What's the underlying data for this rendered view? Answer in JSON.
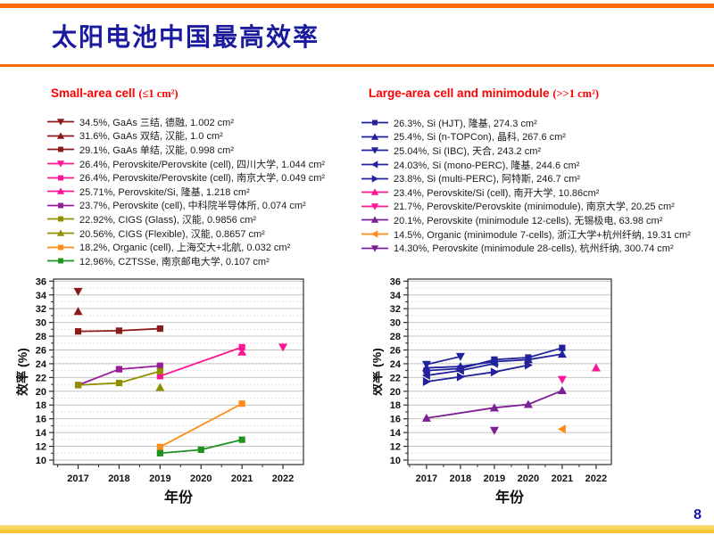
{
  "slide": {
    "title": "太阳电池中国最高效率",
    "page_number": "8"
  },
  "accent_colors": {
    "top_bar_orange": "#FF6A00",
    "bottom_bar_gold": "#F2C02A",
    "title_blue": "#1B1B9E",
    "legend_header_red": "#FF0000"
  },
  "panels": {
    "small": {
      "header": "Small-area cell",
      "size_note": "(≤1 cm²)",
      "items": [
        {
          "marker": "triangle-down",
          "color": "#8B1A1A",
          "text": "34.5%, GaAs 三结, 德融, 1.002 cm²"
        },
        {
          "marker": "triangle-up",
          "color": "#8B1A1A",
          "text": "31.6%, GaAs 双结, 汉能, 1.0 cm²"
        },
        {
          "marker": "square",
          "color": "#8B1A1A",
          "text": "29.1%, GaAs 单结, 汉能, 0.998 cm²"
        },
        {
          "marker": "triangle-down",
          "color": "#FF1493",
          "text": "26.4%, Perovskite/Perovskite (cell), 四川大学, 1.044 cm²"
        },
        {
          "marker": "square",
          "color": "#FF1493",
          "text": "26.4%, Perovskite/Perovskite (cell), 南京大学, 0.049 cm²"
        },
        {
          "marker": "triangle-up",
          "color": "#FF1493",
          "text": "25.71%, Perovskite/Si, 隆基, 1.218 cm²"
        },
        {
          "marker": "square",
          "color": "#9A1B9E",
          "text": "23.7%, Perovskite (cell), 中科院半导体所, 0.074 cm²"
        },
        {
          "marker": "square",
          "color": "#8F8F00",
          "text": "22.92%, CIGS (Glass), 汉能, 0.9856 cm²"
        },
        {
          "marker": "triangle-up",
          "color": "#8F8F00",
          "text": "20.56%, CIGS (Flexible), 汉能, 0.8657 cm²"
        },
        {
          "marker": "square",
          "color": "#FF8C1A",
          "text": "18.2%, Organic (cell), 上海交大+北航, 0.032 cm²"
        },
        {
          "marker": "square",
          "color": "#1E941E",
          "text": "12.96%, CZTSSe, 南京邮电大学, 0.107 cm²"
        }
      ]
    },
    "large": {
      "header": "Large-area cell and minimodule",
      "size_note": "(>>1 cm²)",
      "items": [
        {
          "marker": "square",
          "color": "#22229B",
          "text": "26.3%, Si (HJT), 隆基, 274.3 cm²"
        },
        {
          "marker": "triangle-up",
          "color": "#22229B",
          "text": "25.4%, Si (n-TOPCon), 晶科, 267.6 cm²"
        },
        {
          "marker": "triangle-down",
          "color": "#22229B",
          "text": "25.04%, Si (IBC), 天合, 243.2 cm²"
        },
        {
          "marker": "triangle-left",
          "color": "#22229B",
          "text": "24.03%, Si (mono-PERC), 隆基, 244.6 cm²"
        },
        {
          "marker": "triangle-right",
          "color": "#22229B",
          "text": "23.8%, Si (multi-PERC), 阿特斯, 246.7 cm²"
        },
        {
          "marker": "triangle-up",
          "color": "#FF1493",
          "text": "23.4%, Perovskite/Si (cell), 南开大学, 10.86cm²"
        },
        {
          "marker": "triangle-down",
          "color": "#FF1493",
          "text": "21.7%, Perovskite/Perovskite (minimodule), 南京大学, 20.25 cm²"
        },
        {
          "marker": "triangle-up",
          "color": "#7D1F94",
          "text": "20.1%, Perovskite (minimodule 12-cells), 无锡极电, 63.98 cm²"
        },
        {
          "marker": "triangle-left",
          "color": "#FF8C1A",
          "text": "14.5%, Organic (minimodule 7-cells), 浙江大学+杭州纤纳, 19.31 cm²"
        },
        {
          "marker": "triangle-down",
          "color": "#7D1F94",
          "text": "14.30%, Perovskite (minimodule 28-cells), 杭州纤纳, 300.74 cm²"
        }
      ]
    }
  },
  "chart_data": [
    {
      "type": "line",
      "title": "Small-area cell (≤1 cm²) record efficiencies",
      "xlabel": "年份",
      "ylabel": "效率 (%)",
      "xlim": [
        2016.4,
        2022.5
      ],
      "ylim": [
        9.35,
        36.3
      ],
      "x_ticks": [
        2017,
        2018,
        2019,
        2020,
        2021,
        2022
      ],
      "y_ticks": [
        10,
        12,
        14,
        16,
        18,
        20,
        22,
        24,
        26,
        28,
        30,
        32,
        34,
        36
      ],
      "grid": "horizontal: solid at even ticks, dotted at odd",
      "legend_position": "above (separate panel)",
      "series": [
        {
          "name": "GaAs 三结, 德融",
          "color": "#8B1A1A",
          "marker": "triangle-down",
          "points": [
            [
              2017,
              34.5
            ]
          ]
        },
        {
          "name": "GaAs 双结, 汉能",
          "color": "#8B1A1A",
          "marker": "triangle-up",
          "points": [
            [
              2017,
              31.6
            ]
          ]
        },
        {
          "name": "GaAs 单结, 汉能",
          "color": "#8B1A1A",
          "marker": "square",
          "points": [
            [
              2017,
              28.7
            ],
            [
              2018,
              28.8
            ],
            [
              2019,
              29.1
            ]
          ]
        },
        {
          "name": "Perovskite/Perovskite (cell), 四川大学",
          "color": "#FF1493",
          "marker": "triangle-down",
          "points": [
            [
              2022,
              26.4
            ]
          ]
        },
        {
          "name": "Perovskite/Perovskite (cell), 南京大学",
          "color": "#FF1493",
          "marker": "square",
          "points": [
            [
              2019,
              22.2
            ],
            [
              2021,
              26.4
            ]
          ]
        },
        {
          "name": "Perovskite/Si, 隆基",
          "color": "#FF1493",
          "marker": "triangle-up",
          "points": [
            [
              2021,
              25.71
            ]
          ]
        },
        {
          "name": "Perovskite (cell), 中科院半导体所",
          "color": "#9A1B9E",
          "marker": "square",
          "points": [
            [
              2017,
              20.9
            ],
            [
              2018,
              23.2
            ],
            [
              2019,
              23.7
            ]
          ]
        },
        {
          "name": "CIGS (Glass), 汉能",
          "color": "#8F8F00",
          "marker": "square",
          "points": [
            [
              2017,
              20.9
            ],
            [
              2018,
              21.2
            ],
            [
              2019,
              22.92
            ]
          ]
        },
        {
          "name": "CIGS (Flexible), 汉能",
          "color": "#8F8F00",
          "marker": "triangle-up",
          "points": [
            [
              2019,
              20.56
            ]
          ]
        },
        {
          "name": "Organic (cell), 上海交大+北航",
          "color": "#FF8C1A",
          "marker": "square",
          "points": [
            [
              2019,
              11.9
            ],
            [
              2021,
              18.2
            ]
          ]
        },
        {
          "name": "CZTSSe, 南京邮电大学",
          "color": "#1E941E",
          "marker": "square",
          "points": [
            [
              2019,
              11.0
            ],
            [
              2020,
              11.5
            ],
            [
              2021,
              12.96
            ]
          ]
        }
      ]
    },
    {
      "type": "line",
      "title": "Large-area cell and minimodule (>>1 cm²) record efficiencies",
      "xlabel": "年份",
      "ylabel": "效率 (%)",
      "xlim": [
        2016.45,
        2022.45
      ],
      "ylim": [
        9.35,
        36.3
      ],
      "x_ticks": [
        2017,
        2018,
        2019,
        2020,
        2021,
        2022
      ],
      "y_ticks": [
        10,
        12,
        14,
        16,
        18,
        20,
        22,
        24,
        26,
        28,
        30,
        32,
        34,
        36
      ],
      "grid": "horizontal: solid at even ticks, dotted at odd",
      "legend_position": "above (separate panel)",
      "series": [
        {
          "name": "Si (HJT), 隆基",
          "color": "#22229B",
          "marker": "square",
          "points": [
            [
              2017,
              23.0
            ],
            [
              2018,
              23.3
            ],
            [
              2019,
              24.6
            ],
            [
              2020,
              24.9
            ],
            [
              2021,
              26.3
            ]
          ]
        },
        {
          "name": "Si (n-TOPCon), 晶科",
          "color": "#22229B",
          "marker": "triangle-up",
          "points": [
            [
              2017,
              23.4
            ],
            [
              2018,
              23.6
            ],
            [
              2019,
              24.3
            ],
            [
              2020,
              24.6
            ],
            [
              2021,
              25.4
            ]
          ]
        },
        {
          "name": "Si (IBC), 天合",
          "color": "#22229B",
          "marker": "triangle-down",
          "points": [
            [
              2017,
              23.9
            ],
            [
              2018,
              25.04
            ]
          ]
        },
        {
          "name": "Si (mono-PERC), 隆基",
          "color": "#22229B",
          "marker": "triangle-left",
          "points": [
            [
              2017,
              22.3
            ],
            [
              2018,
              23.0
            ],
            [
              2019,
              24.03
            ]
          ]
        },
        {
          "name": "Si (multi-PERC), 阿特斯",
          "color": "#22229B",
          "marker": "triangle-right",
          "points": [
            [
              2017,
              21.4
            ],
            [
              2018,
              22.1
            ],
            [
              2019,
              22.8
            ],
            [
              2020,
              23.8
            ]
          ]
        },
        {
          "name": "Perovskite/Si (cell), 南开大学",
          "color": "#FF1493",
          "marker": "triangle-up",
          "points": [
            [
              2022,
              23.4
            ]
          ]
        },
        {
          "name": "Perovskite/Perovskite (minimodule), 南京大学",
          "color": "#FF1493",
          "marker": "triangle-down",
          "points": [
            [
              2021,
              21.7
            ]
          ]
        },
        {
          "name": "Perovskite (minimodule 12-cells), 无锡极电",
          "color": "#7D1F94",
          "marker": "triangle-up",
          "points": [
            [
              2017,
              16.1
            ],
            [
              2019,
              17.6
            ],
            [
              2020,
              18.1
            ],
            [
              2021,
              20.1
            ]
          ]
        },
        {
          "name": "Organic (minimodule 7-cells), 浙江大学+杭州纤纳",
          "color": "#FF8C1A",
          "marker": "triangle-left",
          "points": [
            [
              2021,
              14.5
            ]
          ]
        },
        {
          "name": "Perovskite (minimodule 28-cells), 杭州纤纳",
          "color": "#7D1F94",
          "marker": "triangle-down",
          "points": [
            [
              2019,
              14.3
            ]
          ]
        }
      ]
    }
  ]
}
